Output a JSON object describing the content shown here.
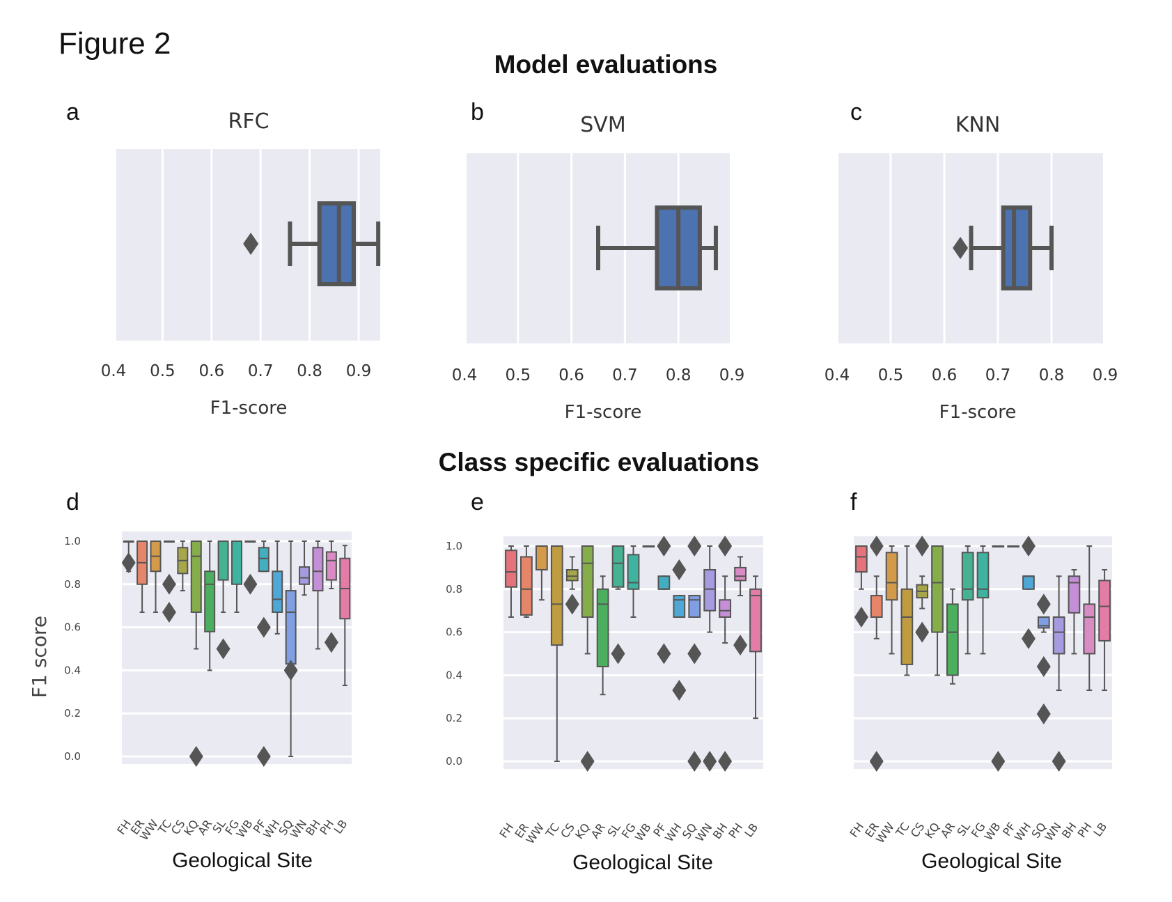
{
  "figure_title": "Figure 2",
  "top_section_title": "Model evaluations",
  "bottom_section_title": "Class specific evaluations",
  "colors": {
    "panel_bg": "#eaeaf2",
    "grid": "#ffffff",
    "box_fill": "#4c72b0",
    "line": "#555555"
  },
  "chart_data": [
    {
      "type": "box",
      "panel": "a",
      "title": "RFC",
      "xlabel": "F1-score",
      "orientation": "horizontal",
      "xlim": [
        0.4,
        0.94
      ],
      "ticks": [
        "0.4",
        "0.5",
        "0.6",
        "0.7",
        "0.8",
        "0.9"
      ],
      "box": {
        "whislo": 0.76,
        "q1": 0.82,
        "med": 0.86,
        "q3": 0.89,
        "whishi": 0.94,
        "fliers": [
          0.68
        ]
      }
    },
    {
      "type": "box",
      "panel": "b",
      "title": "SVM",
      "xlabel": "F1-score",
      "orientation": "horizontal",
      "xlim": [
        0.4,
        0.9
      ],
      "ticks": [
        "0.4",
        "0.5",
        "0.6",
        "0.7",
        "0.8",
        "0.9"
      ],
      "box": {
        "whislo": 0.65,
        "q1": 0.76,
        "med": 0.8,
        "q3": 0.84,
        "whishi": 0.87,
        "fliers": []
      }
    },
    {
      "type": "box",
      "panel": "c",
      "title": "KNN",
      "xlabel": "F1-score",
      "orientation": "horizontal",
      "xlim": [
        0.4,
        0.9
      ],
      "ticks": [
        "0.4",
        "0.5",
        "0.6",
        "0.7",
        "0.8",
        "0.9"
      ],
      "box": {
        "whislo": 0.65,
        "q1": 0.71,
        "med": 0.73,
        "q3": 0.76,
        "whishi": 0.8,
        "fliers": [
          0.63
        ]
      }
    },
    {
      "type": "box",
      "panel": "d",
      "ylabel": "F1 score",
      "xlabel": "Geological Site",
      "ylim": [
        -0.04,
        1.04
      ],
      "yticks": [
        "0.0",
        "0.2",
        "0.4",
        "0.6",
        "0.8",
        "1.0"
      ],
      "categories": [
        "FH",
        "ER",
        "WW",
        "TC",
        "CS",
        "KQ",
        "AR",
        "SL",
        "FG",
        "WB",
        "PF",
        "WH",
        "SQ",
        "WN",
        "BH",
        "PH",
        "LB"
      ],
      "boxes": [
        {
          "whislo": 0.86,
          "q1": 1.0,
          "med": 1.0,
          "q3": 1.0,
          "whishi": 1.0,
          "fliers": [
            0.9
          ]
        },
        {
          "whislo": 0.67,
          "q1": 0.8,
          "med": 0.9,
          "q3": 1.0,
          "whishi": 1.0,
          "fliers": []
        },
        {
          "whislo": 0.67,
          "q1": 0.86,
          "med": 0.93,
          "q3": 1.0,
          "whishi": 1.0,
          "fliers": []
        },
        {
          "whislo": 1.0,
          "q1": 1.0,
          "med": 1.0,
          "q3": 1.0,
          "whishi": 1.0,
          "fliers": [
            0.8,
            0.67
          ]
        },
        {
          "whislo": 0.77,
          "q1": 0.85,
          "med": 0.91,
          "q3": 0.97,
          "whishi": 1.0,
          "fliers": []
        },
        {
          "whislo": 0.5,
          "q1": 0.67,
          "med": 0.93,
          "q3": 1.0,
          "whishi": 1.0,
          "fliers": [
            0.0
          ]
        },
        {
          "whislo": 0.4,
          "q1": 0.58,
          "med": 0.8,
          "q3": 0.86,
          "whishi": 1.0,
          "fliers": []
        },
        {
          "whislo": 0.67,
          "q1": 0.82,
          "med": 1.0,
          "q3": 1.0,
          "whishi": 1.0,
          "fliers": [
            0.5
          ]
        },
        {
          "whislo": 0.67,
          "q1": 0.8,
          "med": 1.0,
          "q3": 1.0,
          "whishi": 1.0,
          "fliers": []
        },
        {
          "whislo": 1.0,
          "q1": 1.0,
          "med": 1.0,
          "q3": 1.0,
          "whishi": 1.0,
          "fliers": [
            0.8
          ]
        },
        {
          "whislo": 0.86,
          "q1": 0.86,
          "med": 0.92,
          "q3": 0.97,
          "whishi": 1.0,
          "fliers": [
            0.6,
            0.0
          ]
        },
        {
          "whislo": 0.57,
          "q1": 0.67,
          "med": 0.73,
          "q3": 0.86,
          "whishi": 1.0,
          "fliers": []
        },
        {
          "whislo": 0.0,
          "q1": 0.43,
          "med": 0.67,
          "q3": 0.77,
          "whishi": 1.0,
          "fliers": [
            0.4
          ]
        },
        {
          "whislo": 0.75,
          "q1": 0.8,
          "med": 0.83,
          "q3": 0.88,
          "whishi": 1.0,
          "fliers": []
        },
        {
          "whislo": 0.5,
          "q1": 0.77,
          "med": 0.86,
          "q3": 0.97,
          "whishi": 1.0,
          "fliers": []
        },
        {
          "whislo": 0.78,
          "q1": 0.82,
          "med": 0.91,
          "q3": 0.95,
          "whishi": 1.0,
          "fliers": [
            0.53
          ]
        },
        {
          "whislo": 0.33,
          "q1": 0.64,
          "med": 0.78,
          "q3": 0.92,
          "whishi": 0.98,
          "fliers": []
        }
      ]
    },
    {
      "type": "box",
      "panel": "e",
      "xlabel": "Geological Site",
      "ylim": [
        -0.04,
        1.04
      ],
      "yticks": [
        "0.0",
        "0.2",
        "0.4",
        "0.6",
        "0.8",
        "1.0"
      ],
      "categories": [
        "FH",
        "ER",
        "WW",
        "TC",
        "CS",
        "KQ",
        "AR",
        "SL",
        "FG",
        "WB",
        "PF",
        "WH",
        "SQ",
        "WN",
        "BH",
        "PH",
        "LB"
      ],
      "boxes": [
        {
          "whislo": 0.67,
          "q1": 0.81,
          "med": 0.88,
          "q3": 0.98,
          "whishi": 1.0,
          "fliers": []
        },
        {
          "whislo": 0.67,
          "q1": 0.68,
          "med": 0.8,
          "q3": 0.95,
          "whishi": 1.0,
          "fliers": []
        },
        {
          "whislo": 0.75,
          "q1": 0.89,
          "med": 1.0,
          "q3": 1.0,
          "whishi": 1.0,
          "fliers": []
        },
        {
          "whislo": 0.0,
          "q1": 0.54,
          "med": 0.73,
          "q3": 1.0,
          "whishi": 1.0,
          "fliers": []
        },
        {
          "whislo": 0.8,
          "q1": 0.84,
          "med": 0.86,
          "q3": 0.89,
          "whishi": 0.95,
          "fliers": [
            0.73
          ]
        },
        {
          "whislo": 0.5,
          "q1": 0.67,
          "med": 0.92,
          "q3": 1.0,
          "whishi": 1.0,
          "fliers": [
            0.0
          ]
        },
        {
          "whislo": 0.31,
          "q1": 0.44,
          "med": 0.73,
          "q3": 0.8,
          "whishi": 0.86,
          "fliers": []
        },
        {
          "whislo": 0.8,
          "q1": 0.81,
          "med": 0.92,
          "q3": 1.0,
          "whishi": 1.0,
          "fliers": [
            0.5
          ]
        },
        {
          "whislo": 0.67,
          "q1": 0.8,
          "med": 0.83,
          "q3": 0.96,
          "whishi": 1.0,
          "fliers": []
        },
        {
          "whislo": 1.0,
          "q1": 1.0,
          "med": 1.0,
          "q3": 1.0,
          "whishi": 1.0,
          "fliers": []
        },
        {
          "whislo": 0.8,
          "q1": 0.8,
          "med": 0.8,
          "q3": 0.86,
          "whishi": 0.86,
          "fliers": [
            1.0,
            0.5
          ]
        },
        {
          "whislo": 0.67,
          "q1": 0.67,
          "med": 0.75,
          "q3": 0.77,
          "whishi": 0.77,
          "fliers": [
            0.89,
            0.33
          ]
        },
        {
          "whislo": 0.67,
          "q1": 0.67,
          "med": 0.75,
          "q3": 0.77,
          "whishi": 0.77,
          "fliers": [
            1.0,
            0.5,
            0.0
          ]
        },
        {
          "whislo": 0.6,
          "q1": 0.7,
          "med": 0.8,
          "q3": 0.89,
          "whishi": 1.0,
          "fliers": [
            0.0
          ]
        },
        {
          "whislo": 0.55,
          "q1": 0.67,
          "med": 0.7,
          "q3": 0.75,
          "whishi": 0.86,
          "fliers": [
            1.0,
            0.0
          ]
        },
        {
          "whislo": 0.77,
          "q1": 0.84,
          "med": 0.86,
          "q3": 0.9,
          "whishi": 0.95,
          "fliers": [
            0.54
          ]
        },
        {
          "whislo": 0.2,
          "q1": 0.51,
          "med": 0.77,
          "q3": 0.8,
          "whishi": 0.86,
          "fliers": []
        }
      ]
    },
    {
      "type": "box",
      "panel": "f",
      "xlabel": "Geological Site",
      "ylim": [
        -0.04,
        1.04
      ],
      "yticks": [
        "0.0",
        "0.2",
        "0.4",
        "0.6",
        "0.8",
        "1.0"
      ],
      "categories": [
        "FH",
        "ER",
        "WW",
        "TC",
        "CS",
        "KQ",
        "AR",
        "SL",
        "FG",
        "WB",
        "PF",
        "WH",
        "SQ",
        "WN",
        "BH",
        "PH",
        "LB"
      ],
      "boxes": [
        {
          "whislo": 0.8,
          "q1": 0.88,
          "med": 0.95,
          "q3": 1.0,
          "whishi": 1.0,
          "fliers": [
            0.67
          ]
        },
        {
          "whislo": 0.57,
          "q1": 0.67,
          "med": 0.67,
          "q3": 0.77,
          "whishi": 0.86,
          "fliers": [
            1.0,
            0.0
          ]
        },
        {
          "whislo": 0.5,
          "q1": 0.75,
          "med": 0.83,
          "q3": 0.97,
          "whishi": 1.0,
          "fliers": []
        },
        {
          "whislo": 0.4,
          "q1": 0.45,
          "med": 0.67,
          "q3": 0.8,
          "whishi": 1.0,
          "fliers": []
        },
        {
          "whislo": 0.71,
          "q1": 0.76,
          "med": 0.79,
          "q3": 0.82,
          "whishi": 0.86,
          "fliers": [
            1.0,
            0.6
          ]
        },
        {
          "whislo": 0.4,
          "q1": 0.6,
          "med": 0.83,
          "q3": 1.0,
          "whishi": 1.0,
          "fliers": []
        },
        {
          "whislo": 0.36,
          "q1": 0.4,
          "med": 0.6,
          "q3": 0.73,
          "whishi": 0.8,
          "fliers": []
        },
        {
          "whislo": 0.5,
          "q1": 0.75,
          "med": 0.8,
          "q3": 0.97,
          "whishi": 1.0,
          "fliers": []
        },
        {
          "whislo": 0.5,
          "q1": 0.76,
          "med": 0.8,
          "q3": 0.97,
          "whishi": 1.0,
          "fliers": []
        },
        {
          "whislo": 1.0,
          "q1": 1.0,
          "med": 1.0,
          "q3": 1.0,
          "whishi": 1.0,
          "fliers": [
            0.0
          ]
        },
        {
          "whislo": 1.0,
          "q1": 1.0,
          "med": 1.0,
          "q3": 1.0,
          "whishi": 1.0,
          "fliers": []
        },
        {
          "whislo": 0.8,
          "q1": 0.8,
          "med": 0.86,
          "q3": 0.86,
          "whishi": 0.86,
          "fliers": [
            1.0,
            0.57
          ]
        },
        {
          "whislo": 0.6,
          "q1": 0.62,
          "med": 0.63,
          "q3": 0.67,
          "whishi": 0.67,
          "fliers": [
            0.73,
            0.44,
            0.22
          ]
        },
        {
          "whislo": 0.33,
          "q1": 0.5,
          "med": 0.6,
          "q3": 0.67,
          "whishi": 0.86,
          "fliers": [
            0.0
          ]
        },
        {
          "whislo": 0.5,
          "q1": 0.69,
          "med": 0.83,
          "q3": 0.86,
          "whishi": 0.89,
          "fliers": []
        },
        {
          "whislo": 0.33,
          "q1": 0.5,
          "med": 0.67,
          "q3": 0.73,
          "whishi": 1.0,
          "fliers": []
        },
        {
          "whislo": 0.33,
          "q1": 0.56,
          "med": 0.72,
          "q3": 0.84,
          "whishi": 0.89,
          "fliers": []
        }
      ]
    }
  ],
  "category_colors": [
    "#e5737c",
    "#e5856a",
    "#d39a4a",
    "#bf9c3f",
    "#a7a64a",
    "#85ad4a",
    "#4caf60",
    "#46b292",
    "#3fb39f",
    "#3fb2b0",
    "#43aec0",
    "#4ea7d4",
    "#7f9fe2",
    "#a69ae0",
    "#c58fd8",
    "#d98cc3",
    "#e37ca6"
  ]
}
